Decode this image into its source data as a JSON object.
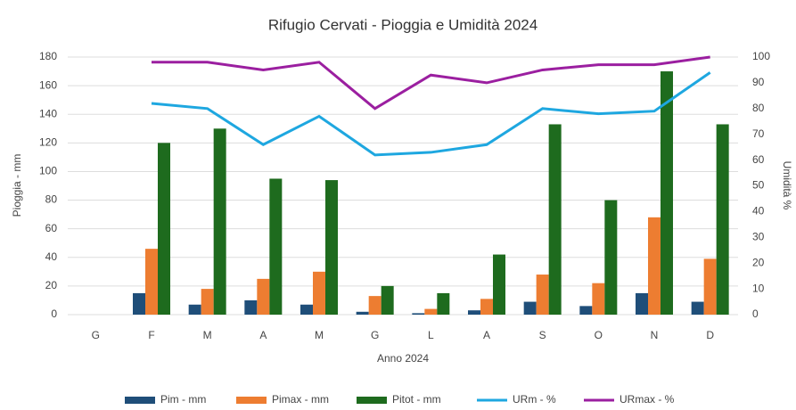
{
  "chart_data": {
    "type": "bar_line",
    "title": "Rifugio Cervati - Pioggia e Umidità 2024",
    "x_label": "Anno 2024",
    "y_label": "Pioggia - mm",
    "y2_label": "Umidità %",
    "categories": [
      "G",
      "F",
      "M",
      "A",
      "M",
      "G",
      "L",
      "A",
      "S",
      "O",
      "N",
      "D"
    ],
    "ylim": [
      0,
      180
    ],
    "yticks": [
      0,
      20,
      40,
      60,
      80,
      100,
      120,
      140,
      160,
      180
    ],
    "y2lim": [
      0,
      100
    ],
    "y2ticks": [
      0,
      10,
      20,
      30,
      40,
      50,
      60,
      70,
      80,
      90,
      100
    ],
    "grid": true,
    "legend": "bottom",
    "series": [
      {
        "name": "Pim - mm",
        "kind": "bar",
        "color": "#1f4e79",
        "values": [
          null,
          15,
          7,
          10,
          7,
          2,
          1,
          3,
          9,
          6,
          15,
          9
        ]
      },
      {
        "name": "Pimax - mm",
        "kind": "bar",
        "color": "#ed7d31",
        "values": [
          null,
          46,
          18,
          25,
          30,
          13,
          4,
          11,
          28,
          22,
          68,
          39
        ]
      },
      {
        "name": "Pitot - mm",
        "kind": "bar",
        "color": "#1e6b1e",
        "values": [
          null,
          120,
          130,
          95,
          94,
          20,
          15,
          42,
          133,
          80,
          170,
          133
        ]
      },
      {
        "name": "URm  - %",
        "kind": "line",
        "axis": "y2",
        "color": "#1ea7e0",
        "values": [
          null,
          82,
          80,
          66,
          77,
          62,
          63,
          66,
          80,
          78,
          79,
          94
        ]
      },
      {
        "name": "URmax - %",
        "kind": "line",
        "axis": "y2",
        "color": "#9b1fa0",
        "values": [
          null,
          98,
          98,
          95,
          98,
          80,
          93,
          90,
          95,
          97,
          97,
          100
        ]
      }
    ]
  }
}
